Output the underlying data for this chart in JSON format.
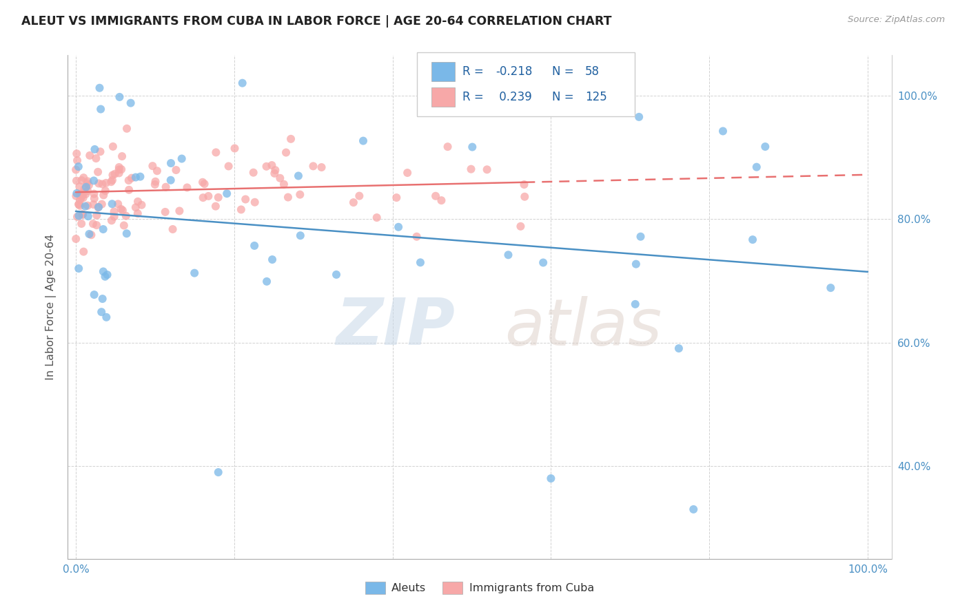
{
  "title": "ALEUT VS IMMIGRANTS FROM CUBA IN LABOR FORCE | AGE 20-64 CORRELATION CHART",
  "source": "Source: ZipAtlas.com",
  "ylabel": "In Labor Force | Age 20-64",
  "blue_color": "#7ab8e8",
  "pink_color": "#f7a8a8",
  "blue_line_color": "#4a90c4",
  "pink_line_color": "#e87070",
  "legend_color": "#2060a0",
  "aleut_R": -0.218,
  "aleut_N": 58,
  "cuba_R": 0.239,
  "cuba_N": 125,
  "tick_color": "#4a90c4",
  "grid_color": "#cccccc",
  "ylabel_color": "#555555",
  "title_color": "#222222",
  "source_color": "#999999"
}
